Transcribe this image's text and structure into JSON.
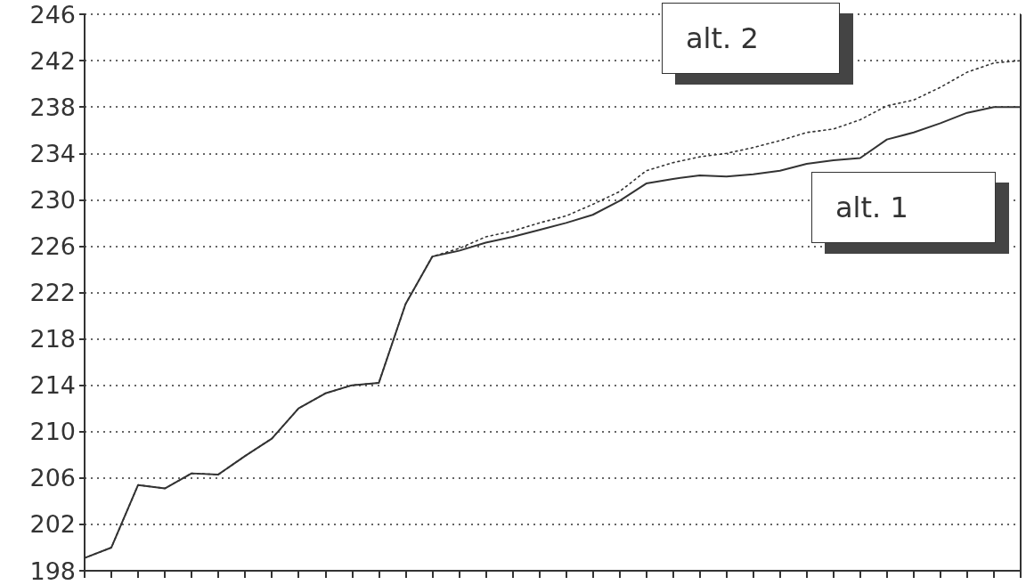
{
  "chart_data": {
    "type": "line",
    "categories": [
      null,
      null,
      null,
      null,
      null,
      null,
      null,
      null,
      null,
      null,
      null,
      null,
      null,
      null,
      null,
      null,
      null,
      null,
      null,
      null,
      null,
      null,
      null,
      null,
      null,
      null,
      null,
      null,
      null,
      null,
      null,
      null,
      null,
      null,
      null,
      null
    ],
    "series": [
      {
        "name": "alt. 1",
        "color": "#333333",
        "line_style": "solid",
        "values": [
          199.1,
          200.0,
          205.4,
          205.1,
          206.4,
          206.3,
          207.9,
          209.4,
          212.0,
          213.3,
          214.0,
          214.2,
          221.0,
          225.1,
          225.6,
          226.3,
          226.8,
          227.4,
          228.0,
          228.7,
          229.9,
          231.4,
          231.8,
          232.1,
          232.0,
          232.2,
          232.5,
          233.1,
          233.4,
          233.6,
          235.2,
          235.8,
          236.6,
          237.5,
          238.0,
          238.0
        ]
      },
      {
        "name": "alt. 2",
        "color": "#333333",
        "line_style": "dotted",
        "values": [
          199.1,
          200.0,
          205.4,
          205.1,
          206.4,
          206.3,
          207.9,
          209.4,
          212.0,
          213.3,
          214.0,
          214.2,
          221.0,
          225.1,
          225.8,
          226.8,
          227.3,
          228.0,
          228.6,
          229.6,
          230.7,
          232.5,
          233.2,
          233.7,
          234.0,
          234.5,
          235.1,
          235.8,
          236.1,
          236.9,
          238.1,
          238.6,
          239.7,
          241.0,
          241.8,
          242.0
        ]
      }
    ],
    "ylim": [
      198,
      246
    ],
    "yticks": [
      198,
      202,
      206,
      210,
      214,
      218,
      222,
      226,
      230,
      234,
      238,
      242,
      246
    ],
    "grid": "y",
    "legend": false,
    "marker": "none",
    "tick_labels": "y"
  }
}
